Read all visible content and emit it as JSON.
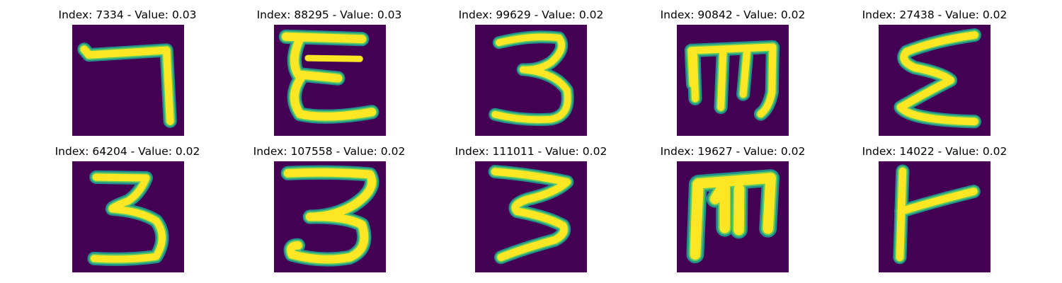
{
  "colors": {
    "background": "#440154",
    "stroke_core": "#fde725",
    "stroke_edge": "#21918c"
  },
  "panels": [
    {
      "title": "Index: 7334 - Value: 0.03",
      "glyph": "seven"
    },
    {
      "title": "Index: 88295 - Value: 0.03",
      "glyph": "epsilon-bar"
    },
    {
      "title": "Index: 99629 - Value: 0.02",
      "glyph": "three-a"
    },
    {
      "title": "Index: 90842 - Value: 0.02",
      "glyph": "m-shape"
    },
    {
      "title": "Index: 27438 - Value: 0.02",
      "glyph": "sigma"
    },
    {
      "title": "Index: 64204 - Value: 0.02",
      "glyph": "three-b"
    },
    {
      "title": "Index: 107558 - Value: 0.02",
      "glyph": "three-c"
    },
    {
      "title": "Index: 111011 - Value: 0.02",
      "glyph": "three-d"
    },
    {
      "title": "Index: 19627 - Value: 0.02",
      "glyph": "m-thick"
    },
    {
      "title": "Index: 14022 - Value: 0.02",
      "glyph": "gamma-tilt"
    }
  ]
}
